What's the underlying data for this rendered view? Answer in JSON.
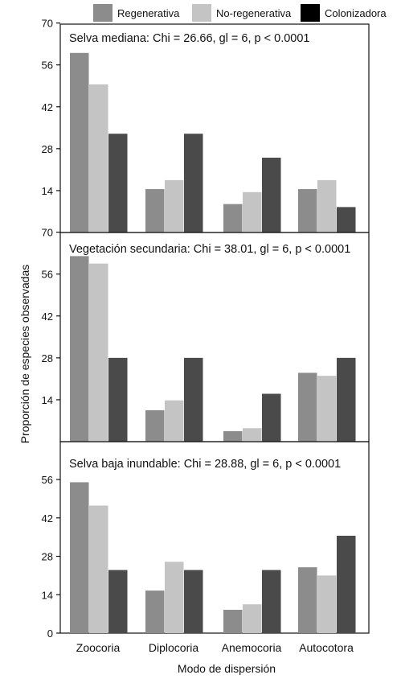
{
  "legend": [
    {
      "label": "Regenerativa",
      "color": "#8c8c8c"
    },
    {
      "label": "No-regenerativa",
      "color": "#c4c4c4"
    },
    {
      "label": "Colonizadora",
      "color": "#000000"
    }
  ],
  "ylabel": "Proporción de especies observadas",
  "xlabel": "Modo de dispersión",
  "categories": [
    "Zoocoria",
    "Diplocoria",
    "Anemocoria",
    "Autocotora"
  ],
  "series_colors": [
    "#8c8c8c",
    "#c4c4c4",
    "#4a4a4a"
  ],
  "chart_data": [
    {
      "type": "bar",
      "title": "Selva mediana: Chi = 26.66, gl = 6, p < 0.0001",
      "categories": [
        "Zoocoria",
        "Diplocoria",
        "Anemocoria",
        "Autocotora"
      ],
      "ylim": [
        0,
        70
      ],
      "yticks": [
        "14",
        "28",
        "42",
        "56",
        "70"
      ],
      "series": [
        {
          "name": "Regenerativa",
          "values": [
            60,
            14.5,
            9.5,
            14.5
          ]
        },
        {
          "name": "No-regenerativa",
          "values": [
            49.5,
            17.5,
            13.5,
            17.5
          ]
        },
        {
          "name": "Colonizadora",
          "values": [
            33,
            33,
            25,
            8.5
          ]
        }
      ]
    },
    {
      "type": "bar",
      "title": "Vegetación secundaria: Chi = 38.01, gl = 6, p < 0.0001",
      "categories": [
        "Zoocoria",
        "Diplocoria",
        "Anemocoria",
        "Autocotora"
      ],
      "ylim": [
        0,
        70
      ],
      "yticks": [
        "14",
        "28",
        "42",
        "56",
        "70"
      ],
      "series": [
        {
          "name": "Regenerativa",
          "values": [
            62,
            10.5,
            3.5,
            23
          ]
        },
        {
          "name": "No-regenerativa",
          "values": [
            59.5,
            13.8,
            4.5,
            22
          ]
        },
        {
          "name": "Colonizadora",
          "values": [
            28,
            28,
            16,
            28
          ]
        }
      ]
    },
    {
      "type": "bar",
      "title": "Selva baja inundable: Chi = 28.88, gl = 6, p < 0.0001",
      "categories": [
        "Zoocoria",
        "Diplocoria",
        "Anemocoria",
        "Autocotora"
      ],
      "ylim": [
        0,
        70
      ],
      "yticks": [
        "0",
        "14",
        "28",
        "42",
        "56"
      ],
      "series": [
        {
          "name": "Regenerativa",
          "values": [
            55,
            15.5,
            8.5,
            24
          ]
        },
        {
          "name": "No-regenerativa",
          "values": [
            46.5,
            26,
            10.5,
            21
          ]
        },
        {
          "name": "Colonizadora",
          "values": [
            23,
            23,
            23,
            35.5
          ]
        }
      ]
    }
  ]
}
